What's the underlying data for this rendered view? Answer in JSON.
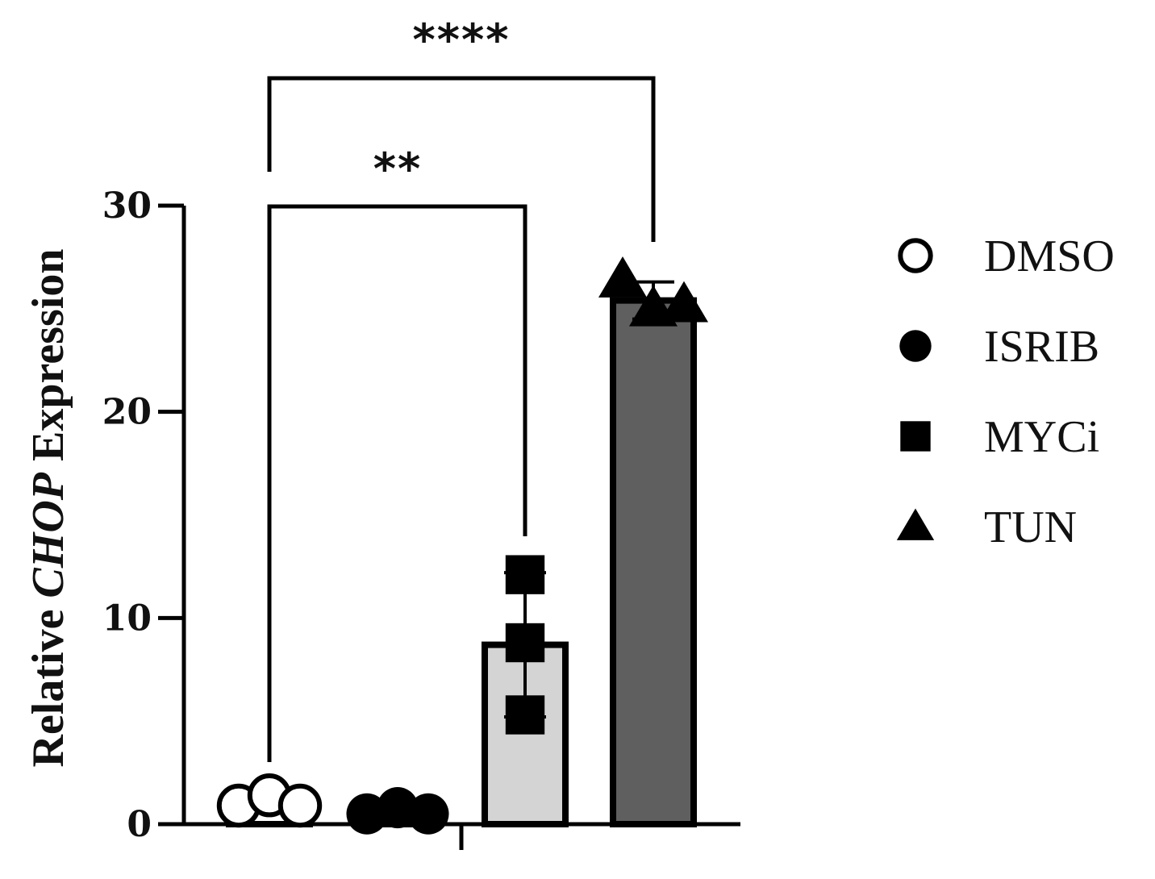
{
  "chart_data": {
    "type": "bar",
    "ylabel": {
      "prefix": "Relative ",
      "italic": "CHOP",
      "suffix": " Expression"
    },
    "ylim": [
      0,
      30
    ],
    "yticks": [
      "0",
      "10",
      "20",
      "30"
    ],
    "categories": [
      "DMSO",
      "ISRIB",
      "MYCi",
      "TUN"
    ],
    "values": [
      1.0,
      0.55,
      8.7,
      25.4
    ],
    "error": [
      0.2,
      0.15,
      3.5,
      0.9
    ],
    "points": [
      [
        0.9,
        1.4,
        0.9
      ],
      [
        0.5,
        0.8,
        0.5
      ],
      [
        12.1,
        8.8,
        5.3
      ],
      [
        26.4,
        25.0,
        25.2
      ]
    ],
    "markers": [
      "circle-open",
      "circle-filled",
      "square",
      "triangle"
    ],
    "bar_fills": [
      "#ffffff",
      "#ffffff",
      "#d4d4d4",
      "#5f5f5f"
    ],
    "significance": [
      {
        "from": "DMSO",
        "to": "MYCi",
        "label": "**"
      },
      {
        "from": "DMSO",
        "to": "TUN",
        "label": "****"
      }
    ],
    "legend": {
      "position": "right",
      "entries": [
        {
          "label": "DMSO",
          "marker": "circle-open"
        },
        {
          "label": "ISRIB",
          "marker": "circle-filled"
        },
        {
          "label": "MYCi",
          "marker": "square"
        },
        {
          "label": "TUN",
          "marker": "triangle"
        }
      ]
    },
    "grid": false
  }
}
